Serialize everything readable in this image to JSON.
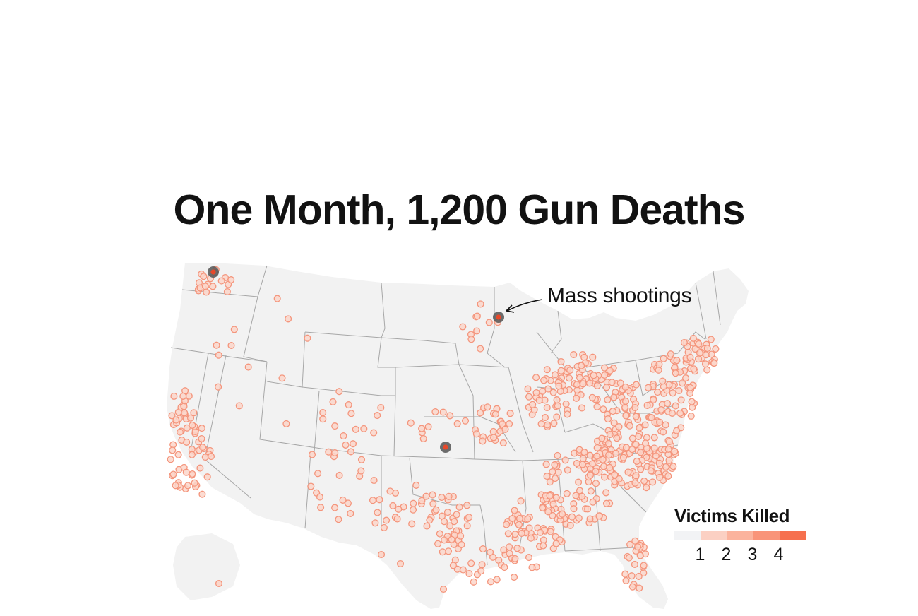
{
  "title": "One Month, 1,200 Gun Deaths",
  "annotation": {
    "label": "Mass shootings"
  },
  "legend": {
    "title": "Victims Killed",
    "scale": [
      {
        "label": "",
        "color": "#f2f3f5"
      },
      {
        "label": "1",
        "color": "#fbd0c3"
      },
      {
        "label": "2",
        "color": "#fbb39d"
      },
      {
        "label": "3",
        "color": "#f99479"
      },
      {
        "label": "4",
        "color": "#f6704e"
      }
    ]
  },
  "colors": {
    "land": "#f2f2f2",
    "borders": "#a7a7a7",
    "point_stroke": "#f4957c",
    "point_fill": "#fbd6ca",
    "mass_shooting_halo": "#555555",
    "mass_shooting_core": "#e8492a"
  },
  "mass_shootings": [
    {
      "location": "Seattle area, WA"
    },
    {
      "location": "Minneapolis area, MN"
    },
    {
      "location": "Wichita area, KS"
    }
  ]
}
